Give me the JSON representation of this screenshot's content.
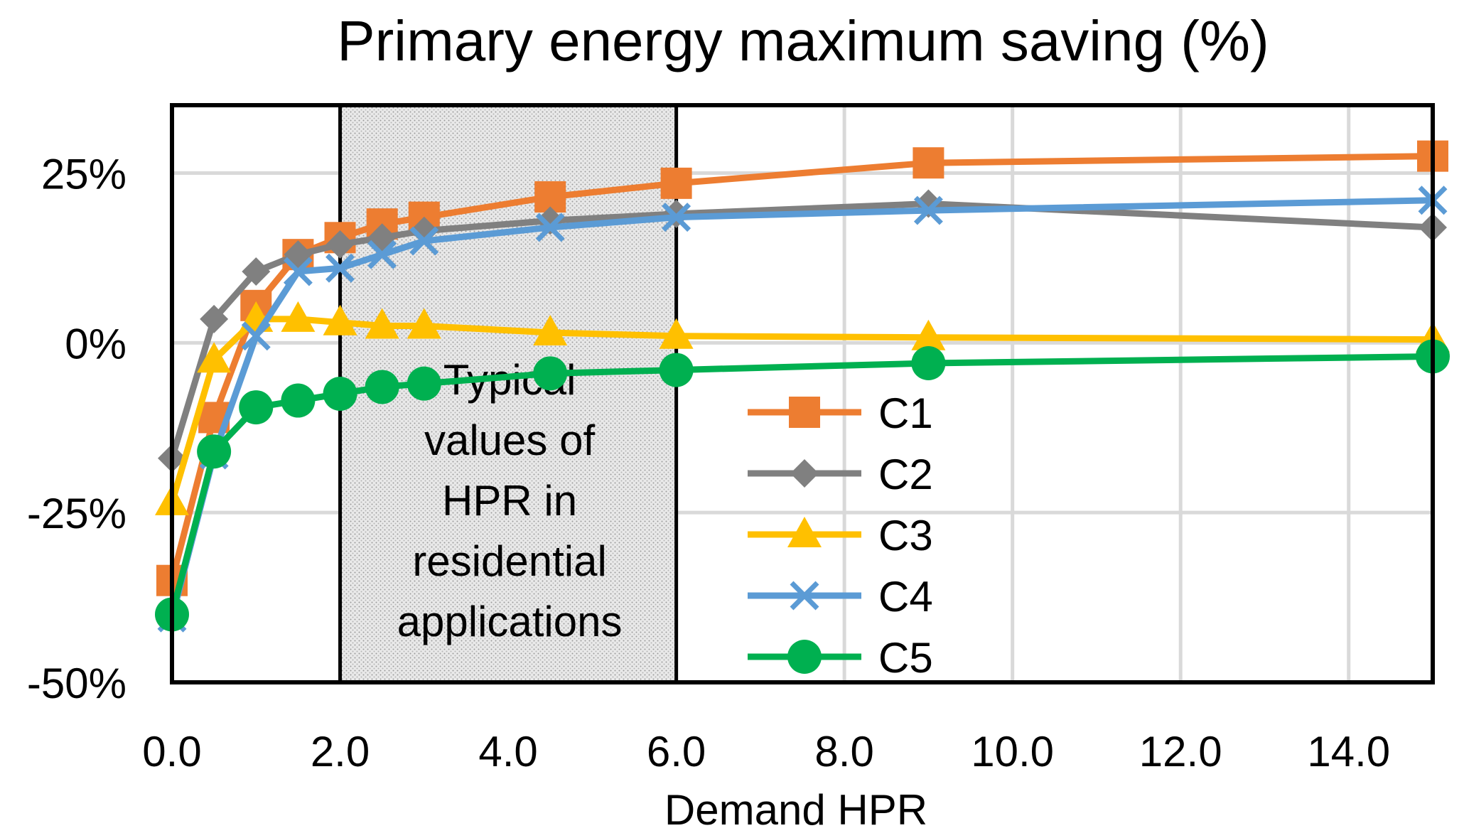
{
  "chart_data": {
    "type": "line",
    "title": "Primary energy maximum saving (%)",
    "xlabel": "Demand HPR",
    "ylabel": "",
    "xlim": [
      0,
      15
    ],
    "ylim": [
      -50,
      35
    ],
    "xticks": [
      0,
      2,
      4,
      6,
      8,
      10,
      12,
      14
    ],
    "xtick_labels": [
      "0.0",
      "2.0",
      "4.0",
      "6.0",
      "8.0",
      "10.0",
      "12.0",
      "14.0"
    ],
    "yticks": [
      25,
      0,
      -25,
      -50
    ],
    "ytick_labels": [
      "25%",
      "0%",
      "-25%",
      "-50%"
    ],
    "grid": true,
    "legend_position": "bottom-right",
    "highlight_region": {
      "x_from": 2.0,
      "x_to": 6.0,
      "label_lines": [
        "Typical",
        "values of",
        "HPR in",
        "residential",
        "applications"
      ]
    },
    "series": [
      {
        "name": "C1",
        "color": "#ED7D31",
        "marker": "square",
        "x": [
          0,
          0.5,
          1,
          1.5,
          2,
          2.5,
          3,
          4.5,
          6,
          9,
          15
        ],
        "values": [
          -35,
          -11,
          5.5,
          13,
          15.5,
          17.5,
          18.5,
          21.5,
          23.5,
          26.5,
          27.5
        ]
      },
      {
        "name": "C2",
        "color": "#808080",
        "marker": "diamond",
        "x": [
          0,
          0.5,
          1,
          1.5,
          2,
          2.5,
          3,
          4.5,
          6,
          9,
          15
        ],
        "values": [
          -17,
          3.5,
          10.5,
          13,
          14.5,
          15.5,
          16.5,
          18,
          19,
          20.5,
          17
        ]
      },
      {
        "name": "C3",
        "color": "#FFC000",
        "marker": "triangle",
        "x": [
          0,
          0.5,
          1,
          1.5,
          2,
          2.5,
          3,
          4.5,
          6,
          9,
          15
        ],
        "values": [
          -23.5,
          -2.5,
          3.5,
          3.5,
          3,
          2.5,
          2.5,
          1.5,
          1,
          0.8,
          0.5
        ]
      },
      {
        "name": "C4",
        "color": "#5B9BD5",
        "marker": "x",
        "x": [
          0,
          0.5,
          1,
          1.5,
          2,
          2.5,
          3,
          4.5,
          6,
          9,
          15
        ],
        "values": [
          -40.5,
          -16.5,
          1,
          10.5,
          11,
          13,
          15,
          17,
          18.5,
          19.5,
          21
        ]
      },
      {
        "name": "C5",
        "color": "#00B050",
        "marker": "circle",
        "x": [
          0,
          0.5,
          1,
          1.5,
          2,
          2.5,
          3,
          4.5,
          6,
          9,
          15
        ],
        "values": [
          -40,
          -16,
          -9.5,
          -8.5,
          -7.5,
          -6.5,
          -6,
          -4.5,
          -4,
          -3,
          -2
        ]
      }
    ]
  }
}
